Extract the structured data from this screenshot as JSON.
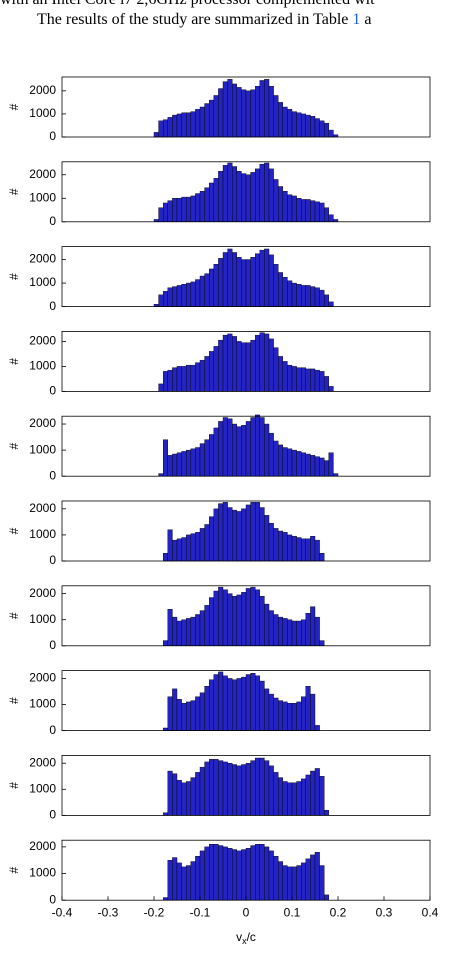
{
  "document": {
    "line1": "with an Intel Core i7 2,6GHz processor complemented wit",
    "line2_start": "The results of the study are summarized in Table",
    "line2_link": "1",
    "line2_end": "a"
  },
  "chart_data": [
    {
      "type": "histogram",
      "color": "#2424c4",
      "ylabel": "#",
      "xlim": [
        -0.4,
        0.4
      ],
      "ylim": [
        0,
        2600
      ],
      "yticks": [
        0,
        1000,
        2000
      ],
      "bins": [
        -0.2,
        -0.19,
        -0.18,
        -0.17,
        -0.16,
        -0.15,
        -0.14,
        -0.13,
        -0.12,
        -0.11,
        -0.1,
        -0.09,
        -0.08,
        -0.07,
        -0.06,
        -0.05,
        -0.04,
        -0.03,
        -0.02,
        -0.01,
        0,
        0.01,
        0.02,
        0.03,
        0.04,
        0.05,
        0.06,
        0.07,
        0.08,
        0.09,
        0.1,
        0.11,
        0.12,
        0.13,
        0.14,
        0.15,
        0.16,
        0.17,
        0.18,
        0.19,
        0.2
      ],
      "values": [
        200,
        700,
        750,
        850,
        950,
        1000,
        1050,
        1050,
        1100,
        1200,
        1300,
        1450,
        1600,
        1800,
        2100,
        2400,
        2500,
        2300,
        2150,
        2050,
        2000,
        2050,
        2200,
        2450,
        2500,
        2200,
        1800,
        1500,
        1300,
        1200,
        1100,
        1050,
        1000,
        950,
        900,
        800,
        700,
        600,
        300,
        100
      ]
    },
    {
      "type": "histogram",
      "color": "#2424c4",
      "ylabel": "#",
      "xlim": [
        -0.4,
        0.4
      ],
      "ylim": [
        0,
        2550
      ],
      "yticks": [
        0,
        1000,
        2000
      ],
      "bins": [
        -0.2,
        -0.19,
        -0.18,
        -0.17,
        -0.16,
        -0.15,
        -0.14,
        -0.13,
        -0.12,
        -0.11,
        -0.1,
        -0.09,
        -0.08,
        -0.07,
        -0.06,
        -0.05,
        -0.04,
        -0.03,
        -0.02,
        -0.01,
        0,
        0.01,
        0.02,
        0.03,
        0.04,
        0.05,
        0.06,
        0.07,
        0.08,
        0.09,
        0.1,
        0.11,
        0.12,
        0.13,
        0.14,
        0.15,
        0.16,
        0.17,
        0.18,
        0.19,
        0.2
      ],
      "values": [
        100,
        600,
        800,
        900,
        1000,
        1000,
        1050,
        1050,
        1100,
        1200,
        1300,
        1450,
        1650,
        1850,
        2150,
        2400,
        2500,
        2350,
        2150,
        2050,
        2000,
        2100,
        2250,
        2450,
        2500,
        2250,
        1800,
        1500,
        1300,
        1150,
        1100,
        1000,
        950,
        950,
        900,
        850,
        800,
        600,
        300,
        100
      ]
    },
    {
      "type": "histogram",
      "color": "#2424c4",
      "ylabel": "#",
      "xlim": [
        -0.4,
        0.4
      ],
      "ylim": [
        0,
        2550
      ],
      "yticks": [
        0,
        1000,
        2000
      ],
      "bins": [
        -0.2,
        -0.19,
        -0.18,
        -0.17,
        -0.16,
        -0.15,
        -0.14,
        -0.13,
        -0.12,
        -0.11,
        -0.1,
        -0.09,
        -0.08,
        -0.07,
        -0.06,
        -0.05,
        -0.04,
        -0.03,
        -0.02,
        -0.01,
        0,
        0.01,
        0.02,
        0.03,
        0.04,
        0.05,
        0.06,
        0.07,
        0.08,
        0.09,
        0.1,
        0.11,
        0.12,
        0.13,
        0.14,
        0.15,
        0.16,
        0.17,
        0.18,
        0.19,
        0.2
      ],
      "values": [
        100,
        500,
        650,
        800,
        850,
        900,
        950,
        1000,
        1050,
        1150,
        1300,
        1400,
        1600,
        1800,
        2050,
        2300,
        2450,
        2300,
        2100,
        2000,
        2000,
        2100,
        2250,
        2400,
        2450,
        2200,
        1800,
        1450,
        1250,
        1100,
        1000,
        950,
        900,
        900,
        850,
        800,
        700,
        500,
        200,
        0
      ]
    },
    {
      "type": "histogram",
      "color": "#2424c4",
      "ylabel": "#",
      "xlim": [
        -0.4,
        0.4
      ],
      "ylim": [
        0,
        2400
      ],
      "yticks": [
        0,
        1000,
        2000
      ],
      "bins": [
        -0.2,
        -0.19,
        -0.18,
        -0.17,
        -0.16,
        -0.15,
        -0.14,
        -0.13,
        -0.12,
        -0.11,
        -0.1,
        -0.09,
        -0.08,
        -0.07,
        -0.06,
        -0.05,
        -0.04,
        -0.03,
        -0.02,
        -0.01,
        0,
        0.01,
        0.02,
        0.03,
        0.04,
        0.05,
        0.06,
        0.07,
        0.08,
        0.09,
        0.1,
        0.11,
        0.12,
        0.13,
        0.14,
        0.15,
        0.16,
        0.17,
        0.18,
        0.19,
        0.2
      ],
      "values": [
        0,
        300,
        800,
        850,
        950,
        1000,
        1000,
        1050,
        1050,
        1150,
        1250,
        1400,
        1600,
        1800,
        2050,
        2250,
        2300,
        2200,
        2000,
        1950,
        1950,
        2050,
        2250,
        2350,
        2300,
        2100,
        1750,
        1400,
        1200,
        1050,
        1000,
        950,
        950,
        900,
        900,
        850,
        800,
        600,
        200,
        0
      ]
    },
    {
      "type": "histogram",
      "color": "#2424c4",
      "ylabel": "#",
      "xlim": [
        -0.4,
        0.4
      ],
      "ylim": [
        0,
        2300
      ],
      "yticks": [
        0,
        1000,
        2000
      ],
      "bins": [
        -0.2,
        -0.19,
        -0.18,
        -0.17,
        -0.16,
        -0.15,
        -0.14,
        -0.13,
        -0.12,
        -0.11,
        -0.1,
        -0.09,
        -0.08,
        -0.07,
        -0.06,
        -0.05,
        -0.04,
        -0.03,
        -0.02,
        -0.01,
        0,
        0.01,
        0.02,
        0.03,
        0.04,
        0.05,
        0.06,
        0.07,
        0.08,
        0.09,
        0.1,
        0.11,
        0.12,
        0.13,
        0.14,
        0.15,
        0.16,
        0.17,
        0.18,
        0.19,
        0.2
      ],
      "values": [
        0,
        100,
        1400,
        800,
        850,
        900,
        950,
        1000,
        1050,
        1100,
        1250,
        1400,
        1600,
        1850,
        2100,
        2250,
        2200,
        2000,
        1900,
        1950,
        2100,
        2250,
        2350,
        2250,
        2000,
        1650,
        1350,
        1200,
        1100,
        1050,
        1000,
        950,
        900,
        850,
        800,
        750,
        700,
        600,
        900,
        100
      ]
    },
    {
      "type": "histogram",
      "color": "#2424c4",
      "ylabel": "#",
      "xlim": [
        -0.4,
        0.4
      ],
      "ylim": [
        0,
        2300
      ],
      "yticks": [
        0,
        1000,
        2000
      ],
      "bins": [
        -0.2,
        -0.19,
        -0.18,
        -0.17,
        -0.16,
        -0.15,
        -0.14,
        -0.13,
        -0.12,
        -0.11,
        -0.1,
        -0.09,
        -0.08,
        -0.07,
        -0.06,
        -0.05,
        -0.04,
        -0.03,
        -0.02,
        -0.01,
        0,
        0.01,
        0.02,
        0.03,
        0.04,
        0.05,
        0.06,
        0.07,
        0.08,
        0.09,
        0.1,
        0.11,
        0.12,
        0.13,
        0.14,
        0.15,
        0.16,
        0.17,
        0.18,
        0.19,
        0.2
      ],
      "values": [
        0,
        0,
        300,
        1200,
        800,
        850,
        900,
        1000,
        1050,
        1100,
        1250,
        1400,
        1700,
        2000,
        2200,
        2250,
        2050,
        1950,
        1900,
        2000,
        2150,
        2250,
        2250,
        2050,
        1750,
        1450,
        1250,
        1150,
        1100,
        1000,
        950,
        900,
        850,
        850,
        950,
        800,
        300,
        0,
        0,
        0
      ]
    },
    {
      "type": "histogram",
      "color": "#2424c4",
      "ylabel": "#",
      "xlim": [
        -0.4,
        0.4
      ],
      "ylim": [
        0,
        2300
      ],
      "yticks": [
        0,
        1000,
        2000
      ],
      "bins": [
        -0.2,
        -0.19,
        -0.18,
        -0.17,
        -0.16,
        -0.15,
        -0.14,
        -0.13,
        -0.12,
        -0.11,
        -0.1,
        -0.09,
        -0.08,
        -0.07,
        -0.06,
        -0.05,
        -0.04,
        -0.03,
        -0.02,
        -0.01,
        0,
        0.01,
        0.02,
        0.03,
        0.04,
        0.05,
        0.06,
        0.07,
        0.08,
        0.09,
        0.1,
        0.11,
        0.12,
        0.13,
        0.14,
        0.15,
        0.16,
        0.17,
        0.18,
        0.19,
        0.2
      ],
      "values": [
        0,
        0,
        200,
        1400,
        1100,
        950,
        1000,
        1050,
        1100,
        1200,
        1350,
        1550,
        1850,
        2100,
        2250,
        2150,
        2000,
        1900,
        1950,
        2050,
        2200,
        2250,
        2150,
        1900,
        1600,
        1350,
        1200,
        1100,
        1050,
        1000,
        950,
        950,
        1000,
        1250,
        1500,
        1100,
        200,
        0,
        0,
        0
      ]
    },
    {
      "type": "histogram",
      "color": "#2424c4",
      "ylabel": "#",
      "xlim": [
        -0.4,
        0.4
      ],
      "ylim": [
        0,
        2300
      ],
      "yticks": [
        0,
        1000,
        2000
      ],
      "bins": [
        -0.2,
        -0.19,
        -0.18,
        -0.17,
        -0.16,
        -0.15,
        -0.14,
        -0.13,
        -0.12,
        -0.11,
        -0.1,
        -0.09,
        -0.08,
        -0.07,
        -0.06,
        -0.05,
        -0.04,
        -0.03,
        -0.02,
        -0.01,
        0,
        0.01,
        0.02,
        0.03,
        0.04,
        0.05,
        0.06,
        0.07,
        0.08,
        0.09,
        0.1,
        0.11,
        0.12,
        0.13,
        0.14,
        0.15,
        0.16,
        0.17,
        0.18,
        0.19,
        0.2
      ],
      "values": [
        0,
        0,
        100,
        1300,
        1600,
        1200,
        1050,
        1100,
        1150,
        1300,
        1450,
        1700,
        1950,
        2150,
        2250,
        2100,
        2000,
        1950,
        2000,
        2050,
        2150,
        2200,
        2100,
        1900,
        1600,
        1400,
        1250,
        1150,
        1100,
        1050,
        1050,
        1100,
        1300,
        1700,
        1400,
        200,
        0,
        0,
        0,
        0
      ]
    },
    {
      "type": "histogram",
      "color": "#2424c4",
      "ylabel": "#",
      "xlim": [
        -0.4,
        0.4
      ],
      "ylim": [
        0,
        2300
      ],
      "yticks": [
        0,
        1000,
        2000
      ],
      "bins": [
        -0.2,
        -0.19,
        -0.18,
        -0.17,
        -0.16,
        -0.15,
        -0.14,
        -0.13,
        -0.12,
        -0.11,
        -0.1,
        -0.09,
        -0.08,
        -0.07,
        -0.06,
        -0.05,
        -0.04,
        -0.03,
        -0.02,
        -0.01,
        0,
        0.01,
        0.02,
        0.03,
        0.04,
        0.05,
        0.06,
        0.07,
        0.08,
        0.09,
        0.1,
        0.11,
        0.12,
        0.13,
        0.14,
        0.15,
        0.16,
        0.17,
        0.18,
        0.19,
        0.2
      ],
      "values": [
        0,
        0,
        100,
        1700,
        1600,
        1350,
        1250,
        1300,
        1450,
        1650,
        1850,
        2050,
        2150,
        2150,
        2100,
        2050,
        2000,
        1950,
        1900,
        1950,
        2000,
        2100,
        2200,
        2200,
        2100,
        1900,
        1650,
        1450,
        1300,
        1250,
        1250,
        1300,
        1400,
        1550,
        1700,
        1800,
        1500,
        200,
        0,
        0
      ]
    },
    {
      "type": "histogram",
      "color": "#2424c4",
      "ylabel": "#",
      "xlim": [
        -0.4,
        0.4
      ],
      "ylim": [
        0,
        2250
      ],
      "yticks": [
        0,
        1000,
        2000
      ],
      "xticks": [
        -0.4,
        -0.3,
        -0.2,
        -0.1,
        0,
        0.1,
        0.2,
        0.3,
        0.4
      ],
      "xlabel": {
        "base": "v",
        "sub": "x",
        "rest": "/c"
      },
      "bins": [
        -0.2,
        -0.19,
        -0.18,
        -0.17,
        -0.16,
        -0.15,
        -0.14,
        -0.13,
        -0.12,
        -0.11,
        -0.1,
        -0.09,
        -0.08,
        -0.07,
        -0.06,
        -0.05,
        -0.04,
        -0.03,
        -0.02,
        -0.01,
        0,
        0.01,
        0.02,
        0.03,
        0.04,
        0.05,
        0.06,
        0.07,
        0.08,
        0.09,
        0.1,
        0.11,
        0.12,
        0.13,
        0.14,
        0.15,
        0.16,
        0.17,
        0.18,
        0.19,
        0.2
      ],
      "values": [
        0,
        0,
        100,
        1500,
        1600,
        1400,
        1250,
        1300,
        1450,
        1650,
        1850,
        2000,
        2100,
        2100,
        2050,
        2000,
        1950,
        1900,
        1850,
        1900,
        1950,
        2050,
        2100,
        2100,
        2000,
        1850,
        1650,
        1450,
        1300,
        1250,
        1250,
        1300,
        1400,
        1550,
        1700,
        1800,
        1300,
        200,
        0,
        0
      ]
    }
  ]
}
